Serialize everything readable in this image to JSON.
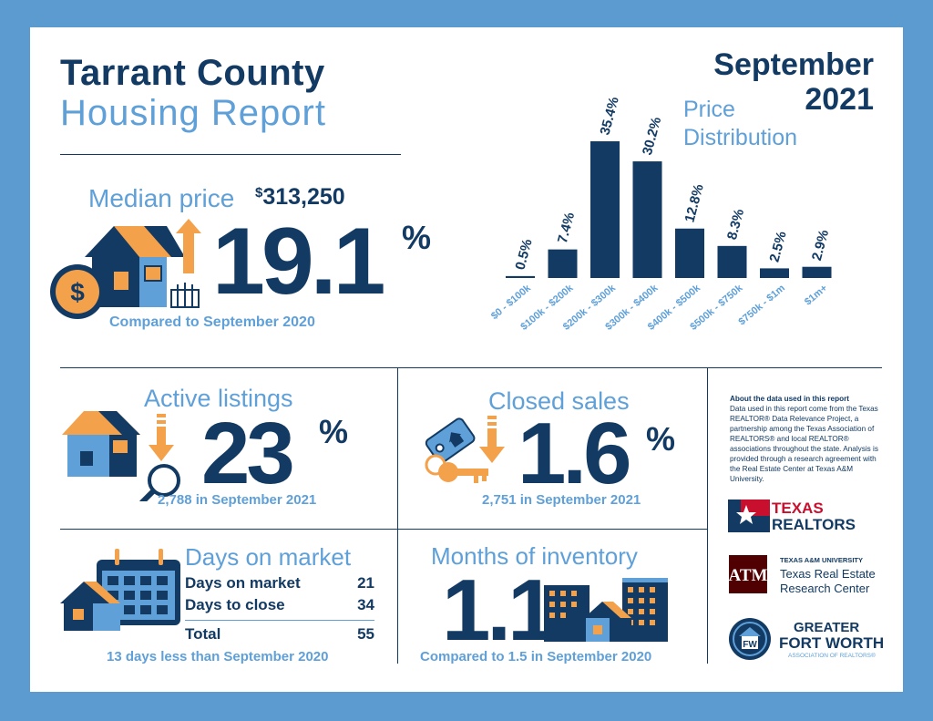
{
  "title": {
    "line1": "Tarrant County",
    "line2": "Housing Report"
  },
  "period": {
    "month": "September",
    "year": "2021"
  },
  "median": {
    "label": "Median price",
    "currency": "$",
    "value": "313,250",
    "change": "19.1",
    "percent_sign": "%",
    "caption": "Compared to September 2020",
    "direction": "up"
  },
  "active": {
    "label": "Active listings",
    "change": "23",
    "percent_sign": "%",
    "caption": "2,788 in September 2021",
    "direction": "down"
  },
  "closed": {
    "label": "Closed sales",
    "change": "1.6",
    "percent_sign": "%",
    "caption": "2,751 in September 2021",
    "direction": "down"
  },
  "dom": {
    "label": "Days on market",
    "rows": [
      {
        "label": "Days on market",
        "value": "21"
      },
      {
        "label": "Days to close",
        "value": "34"
      }
    ],
    "total_label": "Total",
    "total_value": "55",
    "caption": "13 days less than September 2020"
  },
  "inventory": {
    "label": "Months of inventory",
    "value": "1.1",
    "caption": "Compared to 1.5 in September 2020"
  },
  "about": {
    "heading": "About the data used in this report",
    "body": "Data used in this report come from the Texas REALTOR® Data Relevance Project, a partnership among the Texas Association of REALTORS® and local REALTOR® associations throughout the state. Analysis is provided through a research agreement with the Real Estate Center at Texas A&M University."
  },
  "logos": {
    "tr_line1": "TEXAS",
    "tr_line2": "REALTORS",
    "tamu_line1": "TEXAS A&M UNIVERSITY",
    "tamu_line2": "Texas Real Estate",
    "tamu_line3": "Research Center",
    "gfw_line1": "GREATER",
    "gfw_line2": "FORT WORTH",
    "gfw_line3": "ASSOCIATION OF REALTORS®"
  },
  "colors": {
    "navy": "#123a63",
    "light_blue": "#5fa0d8",
    "orange": "#f4a14c",
    "border": "#5b9bd0",
    "red": "#c8102e",
    "maroon": "#500000"
  },
  "chart_data": {
    "type": "bar",
    "title": "Price Distribution",
    "title_line1": "Price",
    "title_line2": "Distribution",
    "categories": [
      "$0 - $100k",
      "$100k - $200k",
      "$200k - $300k",
      "$300k - $400k",
      "$400k - $500k",
      "$500k - $750k",
      "$750k - $1m",
      "$1m+"
    ],
    "values": [
      0.5,
      7.4,
      35.4,
      30.2,
      12.8,
      8.3,
      2.5,
      2.9
    ],
    "value_labels": [
      "0.5%",
      "7.4%",
      "35.4%",
      "30.2%",
      "12.8%",
      "8.3%",
      "2.5%",
      "2.9%"
    ],
    "ylim": [
      0,
      35.4
    ],
    "grid": false,
    "legend": "none"
  }
}
